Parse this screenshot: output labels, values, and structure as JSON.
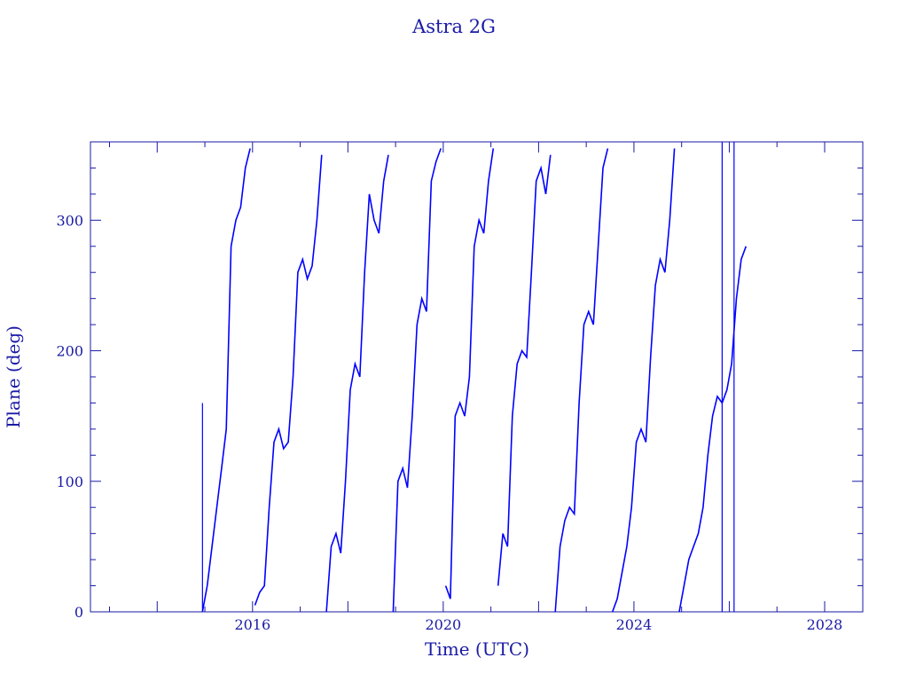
{
  "chart_data": {
    "type": "line",
    "title": "Astra 2G",
    "xlabel": "Time (UTC)",
    "ylabel": "Plane (deg)",
    "xlim": [
      2012.6,
      2028.8
    ],
    "ylim": [
      0,
      360
    ],
    "x_ticks": [
      2016,
      2020,
      2024,
      2028
    ],
    "y_ticks": [
      0,
      100,
      200,
      300
    ],
    "x_tick_labels": [
      "2016",
      "2020",
      "2024",
      "2028"
    ],
    "y_tick_labels": [
      "0",
      "100",
      "200",
      "300"
    ],
    "grid": false,
    "legend": "none",
    "color": "#0000ff",
    "axis_color": "#1a1aa6",
    "wrap_at": 360,
    "isolated_vertical_lines": [
      {
        "x": 2014.95,
        "y_from": 0,
        "y_to": 160
      },
      {
        "x": 2025.85,
        "y_from": 0,
        "y_to": 360
      },
      {
        "x": 2026.1,
        "y_from": 0,
        "y_to": 360
      }
    ],
    "series": [
      {
        "x": [
          2014.95,
          2015.05,
          2015.15,
          2015.25,
          2015.35,
          2015.45,
          2015.55,
          2015.65,
          2015.75,
          2015.85,
          2015.95,
          2016.05,
          2016.15,
          2016.25,
          2016.35,
          2016.45,
          2016.55,
          2016.65,
          2016.75,
          2016.85,
          2016.95,
          2017.05,
          2017.15,
          2017.25,
          2017.35,
          2017.45,
          2017.55,
          2017.65,
          2017.75,
          2017.85,
          2017.95,
          2018.05,
          2018.15,
          2018.25,
          2018.35,
          2018.45,
          2018.55,
          2018.65,
          2018.75,
          2018.85,
          2018.95,
          2019.05,
          2019.15,
          2019.25,
          2019.35,
          2019.45,
          2019.55,
          2019.65,
          2019.75,
          2019.85,
          2019.95,
          2020.05,
          2020.15,
          2020.25,
          2020.35,
          2020.45,
          2020.55,
          2020.65,
          2020.75,
          2020.85,
          2020.95,
          2021.05,
          2021.15,
          2021.25,
          2021.35,
          2021.45,
          2021.55,
          2021.65,
          2021.75,
          2021.85,
          2021.95,
          2022.05,
          2022.15,
          2022.25,
          2022.35,
          2022.45,
          2022.55,
          2022.65,
          2022.75,
          2022.85,
          2022.95,
          2023.05,
          2023.15,
          2023.25,
          2023.35,
          2023.45,
          2023.55,
          2023.65,
          2023.75,
          2023.85,
          2023.95,
          2024.05,
          2024.15,
          2024.25,
          2024.35,
          2024.45,
          2024.55,
          2024.65,
          2024.75,
          2024.85,
          2024.95,
          2025.05,
          2025.15,
          2025.25,
          2025.35,
          2025.45,
          2025.55,
          2025.65,
          2025.75,
          2025.85,
          2025.95,
          2026.05,
          2026.15,
          2026.25,
          2026.35
        ],
        "y": [
          0,
          20,
          50,
          80,
          110,
          140,
          280,
          300,
          310,
          340,
          355,
          5,
          15,
          20,
          80,
          130,
          140,
          125,
          130,
          180,
          260,
          270,
          255,
          265,
          300,
          350,
          0,
          50,
          60,
          45,
          100,
          170,
          190,
          180,
          260,
          320,
          300,
          290,
          330,
          350,
          0,
          100,
          110,
          95,
          150,
          220,
          240,
          230,
          330,
          345,
          355,
          20,
          10,
          150,
          160,
          150,
          180,
          280,
          300,
          290,
          330,
          355,
          20,
          60,
          50,
          150,
          190,
          200,
          195,
          260,
          330,
          340,
          320,
          350,
          0,
          50,
          70,
          80,
          75,
          160,
          220,
          230,
          220,
          280,
          340,
          355,
          0,
          10,
          30,
          50,
          80,
          130,
          140,
          130,
          195,
          250,
          270,
          260,
          300,
          355,
          0,
          20,
          40,
          50,
          60,
          80,
          120,
          150,
          165,
          160,
          170,
          190,
          240,
          270,
          280
        ]
      }
    ]
  }
}
